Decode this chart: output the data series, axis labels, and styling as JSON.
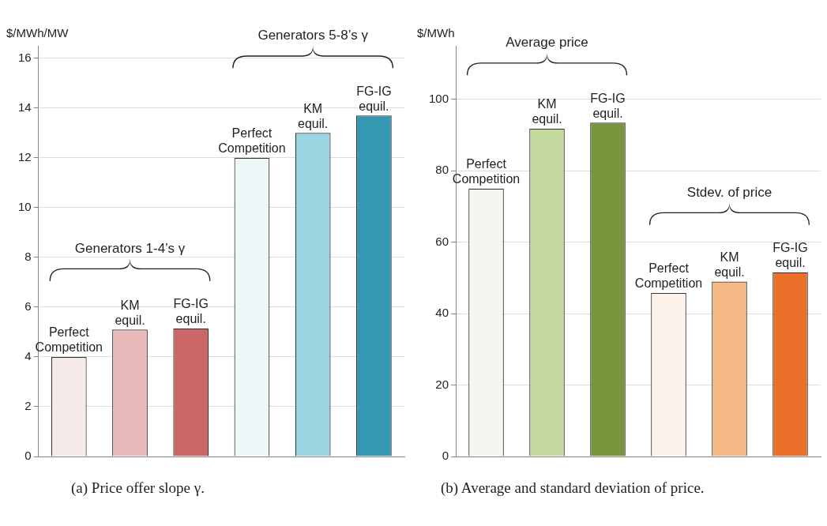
{
  "chart_data": [
    {
      "type": "bar",
      "title": "(a) Price offer slope γ.",
      "ylabel": "$/MWh/MW",
      "categories": [
        "Perfect Competition",
        "KM equil.",
        "FG-IG equil.",
        "Perfect Competition",
        "KM equil.",
        "FG-IG equil."
      ],
      "values": [
        4,
        5.1,
        5.15,
        12,
        13,
        13.7
      ],
      "colors": [
        "#f7ebea",
        "#e8b9b9",
        "#cb6767",
        "#eef6f8",
        "#9bd3e1",
        "#3598b3"
      ],
      "ylim": [
        0,
        16.5
      ],
      "yticks": [
        0,
        2,
        4,
        6,
        8,
        10,
        12,
        14,
        16
      ],
      "grid": "y",
      "annotations": [
        "Generators 1-4’s γ",
        "Generators 5-8’s γ"
      ]
    },
    {
      "type": "bar",
      "title": "(b) Average and standard deviation of price.",
      "ylabel": "$/MWh",
      "categories": [
        "Perfect Competition",
        "KM equil.",
        "FG-IG equil.",
        "Perfect Competition",
        "KM equil.",
        "FG-IG equil."
      ],
      "values": [
        75,
        91.8,
        93.5,
        45.8,
        49,
        51.6
      ],
      "colors": [
        "#f3f6f1",
        "#c6d9a0",
        "#77963d",
        "#fdf3ec",
        "#f6b985",
        "#ea7029"
      ],
      "ylim": [
        0,
        115
      ],
      "yticks": [
        0,
        20,
        40,
        60,
        80,
        100
      ],
      "grid": "y",
      "annotations": [
        "Average price",
        "Stdev. of price"
      ]
    }
  ]
}
